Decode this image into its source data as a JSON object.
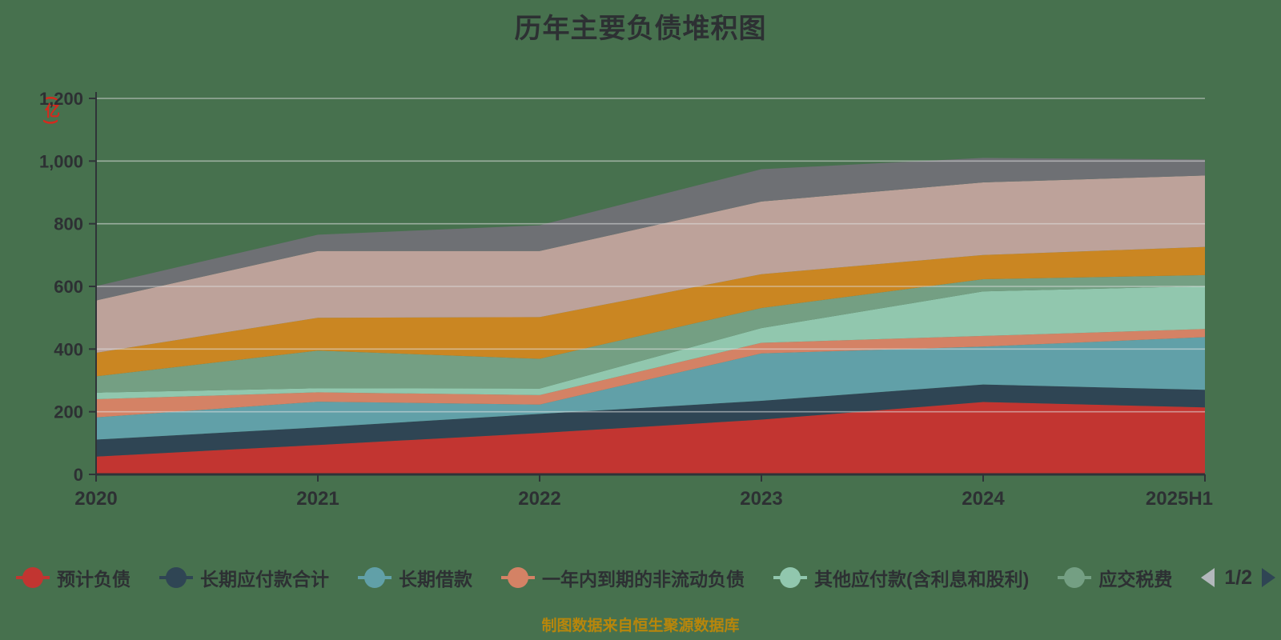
{
  "title": "历年主要负债堆积图",
  "footer": "制图数据来自恒生聚源数据库",
  "legend": {
    "page_label": "1/2",
    "items": [
      {
        "label": "预计负债",
        "color": "#c23531"
      },
      {
        "label": "长期应付款合计",
        "color": "#2f4554"
      },
      {
        "label": "长期借款",
        "color": "#61a0a8"
      },
      {
        "label": "一年内到期的非流动负债",
        "color": "#d48265"
      },
      {
        "label": "其他应付款(含利息和股利)",
        "color": "#91c7ae"
      },
      {
        "label": "应交税费",
        "color": "#749f83"
      }
    ]
  },
  "chart_data": {
    "type": "area",
    "stacked": true,
    "title": "历年主要负债堆积图",
    "categories": [
      "2020",
      "2021",
      "2022",
      "2023",
      "2024",
      "2025H1"
    ],
    "series": [
      {
        "name": "预计负债",
        "color": "#c23531",
        "values": [
          57,
          94,
          132,
          175,
          231,
          214
        ]
      },
      {
        "name": "长期应付款合计",
        "color": "#2f4554",
        "values": [
          54,
          56,
          61,
          60,
          56,
          56
        ]
      },
      {
        "name": "长期借款",
        "color": "#61a0a8",
        "values": [
          71,
          82,
          30,
          151,
          121,
          168
        ]
      },
      {
        "name": "一年内到期的非流动负债",
        "color": "#d48265",
        "values": [
          58,
          30,
          30,
          34,
          34,
          26
        ]
      },
      {
        "name": "其他应付款(含利息和股利)",
        "color": "#91c7ae",
        "values": [
          21,
          13,
          21,
          47,
          142,
          137
        ]
      },
      {
        "name": "应交税费",
        "color": "#749f83",
        "values": [
          52,
          120,
          95,
          64,
          39,
          35
        ]
      },
      {
        "name": "",
        "color": "#ca8622",
        "values": [
          75,
          105,
          133,
          108,
          77,
          90
        ]
      },
      {
        "name": "",
        "color": "#bda29a",
        "values": [
          167,
          213,
          211,
          232,
          232,
          228
        ]
      },
      {
        "name": "",
        "color": "#6e7074",
        "values": [
          46,
          52,
          82,
          103,
          78,
          51
        ]
      }
    ],
    "y_axis": {
      "unit_label": "(亿)",
      "min": 0,
      "max": 1200,
      "tick_interval": 200,
      "tick_labels": [
        "0",
        "200",
        "400",
        "600",
        "800",
        "1,000",
        "1,200"
      ]
    },
    "xlabel": "",
    "ylabel": "(亿)",
    "grid": true,
    "legend_position": "bottom"
  },
  "colors": {
    "background": "#47714e",
    "text": "#2d3033",
    "axis": "#2f3338",
    "gridline": "#e0e0e0",
    "unit_label": "#d42a1e",
    "footer_text": "#b8860b",
    "pager_prev": "#b3b8bc",
    "pager_next": "#2f4554"
  }
}
